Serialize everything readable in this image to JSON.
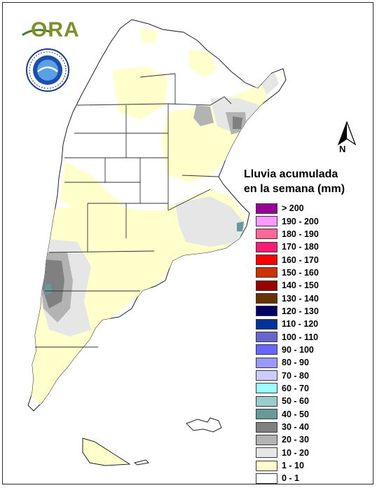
{
  "legend": {
    "title_line1": "Lluvia acumulada",
    "title_line2": "en la semana (mm)",
    "classes": [
      {
        "label": "> 200",
        "color": "#990099"
      },
      {
        "label": "190 - 200",
        "color": "#ff99ff"
      },
      {
        "label": "180 - 190",
        "color": "#ff6699"
      },
      {
        "label": "170 - 180",
        "color": "#ff1a75"
      },
      {
        "label": "160 - 170",
        "color": "#ff0000"
      },
      {
        "label": "150 - 160",
        "color": "#cc3300"
      },
      {
        "label": "140 - 150",
        "color": "#990000"
      },
      {
        "label": "130 - 140",
        "color": "#663300"
      },
      {
        "label": "120 - 130",
        "color": "#000066"
      },
      {
        "label": "110 - 120",
        "color": "#003399"
      },
      {
        "label": "100 - 110",
        "color": "#6666cc"
      },
      {
        "label": "90 - 100",
        "color": "#6666ff"
      },
      {
        "label": "80 - 90",
        "color": "#9999ff"
      },
      {
        "label": "70 - 80",
        "color": "#ccccff"
      },
      {
        "label": "60 - 70",
        "color": "#99ffff"
      },
      {
        "label": "50 - 60",
        "color": "#99cccc"
      },
      {
        "label": "40 - 50",
        "color": "#669999"
      },
      {
        "label": "30 - 40",
        "color": "#808080"
      },
      {
        "label": "20 - 30",
        "color": "#b3b3b3"
      },
      {
        "label": "10 - 20",
        "color": "#e6e6e6"
      },
      {
        "label": "1 - 10",
        "color": "#ffffcc"
      },
      {
        "label": "0 - 1",
        "color": "#ffffff"
      }
    ]
  },
  "logo": {
    "text": "ORA"
  },
  "north_arrow": {
    "label": "N"
  },
  "colors": {
    "border": "#2b2b2b",
    "map_fill_dry": "#ffffff",
    "map_fill_light": "#ffffcc"
  }
}
